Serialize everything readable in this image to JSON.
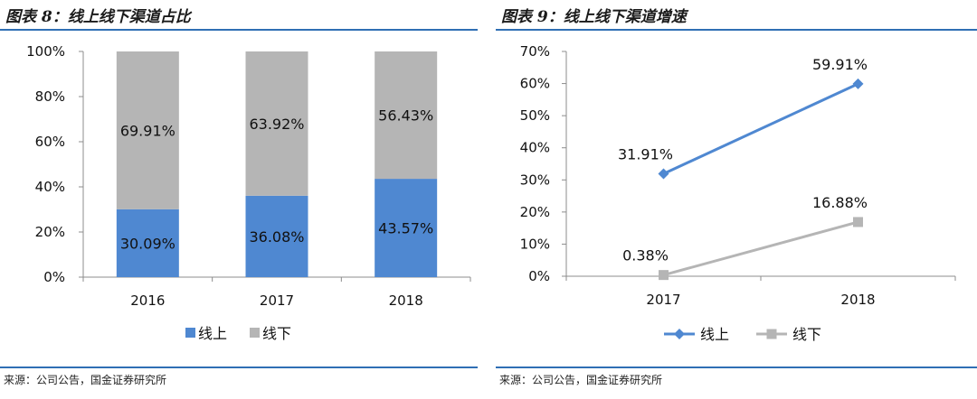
{
  "panels": [
    {
      "title": "图表 8：线上线下渠道占比",
      "source": "来源：公司公告，国金证券研究所",
      "chart_data": {
        "type": "bar",
        "stacked": true,
        "categories": [
          "2016",
          "2017",
          "2018"
        ],
        "series": [
          {
            "name": "线上",
            "values": [
              30.09,
              36.08,
              43.57
            ],
            "labels": [
              "30.09%",
              "36.08%",
              "43.57%"
            ],
            "color": "#4f88d1"
          },
          {
            "name": "线下",
            "values": [
              69.91,
              63.92,
              56.43
            ],
            "labels": [
              "69.91%",
              "63.92%",
              "56.43%"
            ],
            "color": "#b5b5b5"
          }
        ],
        "ylim": [
          0,
          100
        ],
        "yticks": [
          "0%",
          "20%",
          "40%",
          "60%",
          "80%",
          "100%"
        ],
        "grid": false,
        "legend": "bottom"
      }
    },
    {
      "title": "图表 9：线上线下渠道增速",
      "source": "来源：公司公告，国金证券研究所",
      "chart_data": {
        "type": "line",
        "x": [
          "2017",
          "2018"
        ],
        "series": [
          {
            "name": "线上",
            "values": [
              31.91,
              59.91
            ],
            "labels": [
              "31.91%",
              "59.91%"
            ],
            "color": "#4f88d1",
            "marker": "diamond"
          },
          {
            "name": "线下",
            "values": [
              0.38,
              16.88
            ],
            "labels": [
              "0.38%",
              "16.88%"
            ],
            "color": "#b5b5b5",
            "marker": "square"
          }
        ],
        "ylim": [
          0,
          70
        ],
        "yticks": [
          "0%",
          "10%",
          "20%",
          "30%",
          "40%",
          "50%",
          "60%",
          "70%"
        ],
        "grid": false,
        "legend": "bottom"
      }
    }
  ]
}
